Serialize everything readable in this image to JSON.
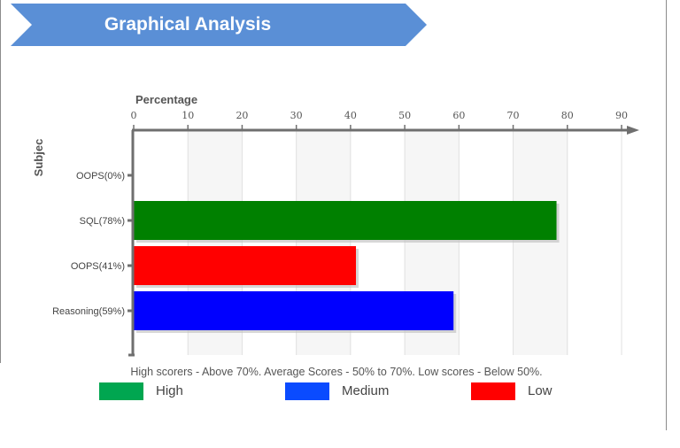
{
  "header": {
    "title": "Graphical Analysis"
  },
  "chart_data": {
    "type": "bar",
    "orientation": "horizontal",
    "xlabel": "Percentage",
    "ylabel": "Subjec",
    "xlim": [
      0,
      90
    ],
    "xticks": [
      0,
      10,
      20,
      30,
      40,
      50,
      60,
      70,
      80,
      90
    ],
    "grid": true,
    "categories": [
      "OOPS(0%)",
      "SQL(78%)",
      "OOPS(41%)",
      "Reasoning(59%)"
    ],
    "values": [
      0,
      78,
      41,
      59
    ],
    "colors": [
      "#008000",
      "#008000",
      "#ff0000",
      "#0000ff"
    ],
    "subtitle": "High scorers - Above 70%. Average Scores - 50% to 70%. Low scores - Below 50%.",
    "legend": [
      {
        "label": "High",
        "color": "#00a650"
      },
      {
        "label": "Medium",
        "color": "#0a4bff"
      },
      {
        "label": "Low",
        "color": "#ff0000"
      }
    ],
    "legend_position": "bottom"
  }
}
